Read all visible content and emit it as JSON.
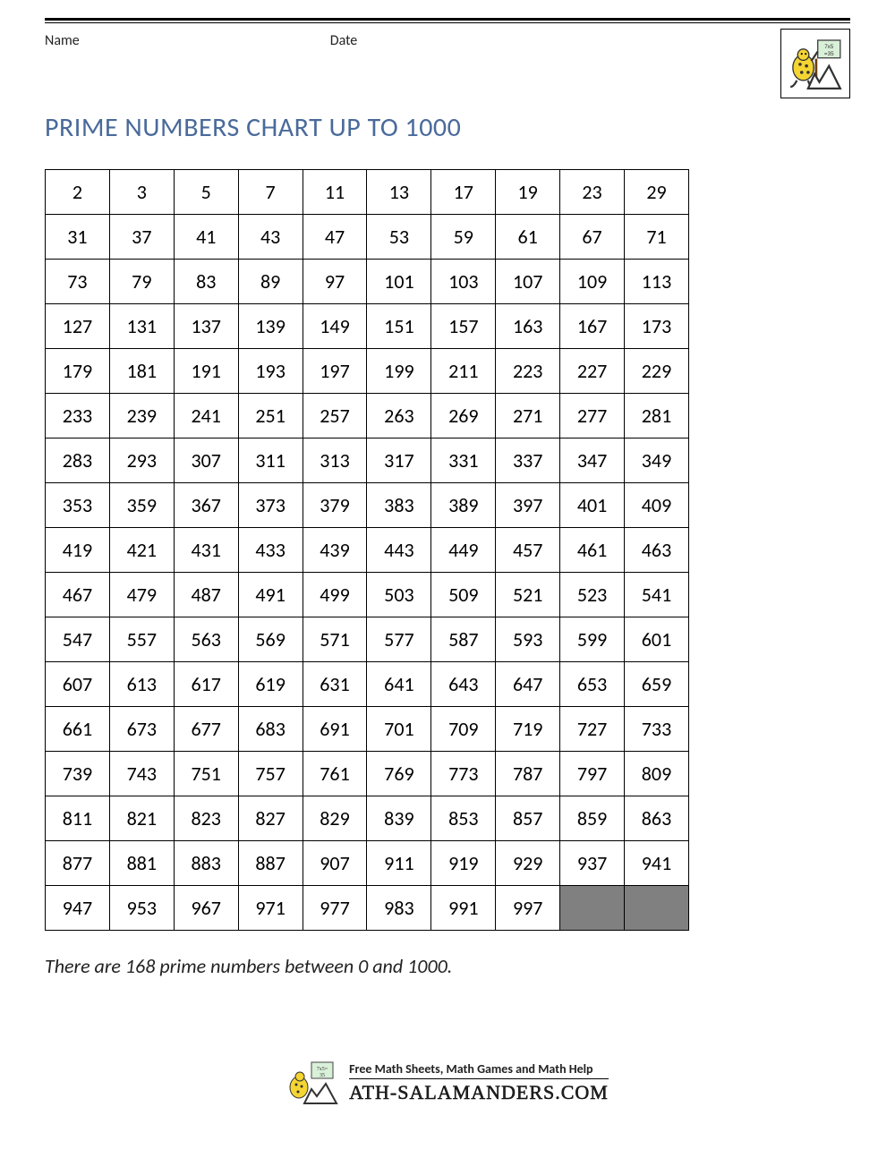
{
  "header": {
    "name_label": "Name",
    "date_label": "Date"
  },
  "title": "PRIME NUMBERS CHART UP TO 1000",
  "table": {
    "columns": 10,
    "cell_fontsize": 22,
    "border_color": "#000000",
    "empty_cell_color": "#808080",
    "values": [
      2,
      3,
      5,
      7,
      11,
      13,
      17,
      19,
      23,
      29,
      31,
      37,
      41,
      43,
      47,
      53,
      59,
      61,
      67,
      71,
      73,
      79,
      83,
      89,
      97,
      101,
      103,
      107,
      109,
      113,
      127,
      131,
      137,
      139,
      149,
      151,
      157,
      163,
      167,
      173,
      179,
      181,
      191,
      193,
      197,
      199,
      211,
      223,
      227,
      229,
      233,
      239,
      241,
      251,
      257,
      263,
      269,
      271,
      277,
      281,
      283,
      293,
      307,
      311,
      313,
      317,
      331,
      337,
      347,
      349,
      353,
      359,
      367,
      373,
      379,
      383,
      389,
      397,
      401,
      409,
      419,
      421,
      431,
      433,
      439,
      443,
      449,
      457,
      461,
      463,
      467,
      479,
      487,
      491,
      499,
      503,
      509,
      521,
      523,
      541,
      547,
      557,
      563,
      569,
      571,
      577,
      587,
      593,
      599,
      601,
      607,
      613,
      617,
      619,
      631,
      641,
      643,
      647,
      653,
      659,
      661,
      673,
      677,
      683,
      691,
      701,
      709,
      719,
      727,
      733,
      739,
      743,
      751,
      757,
      761,
      769,
      773,
      787,
      797,
      809,
      811,
      821,
      823,
      827,
      829,
      839,
      853,
      857,
      859,
      863,
      877,
      881,
      883,
      887,
      907,
      911,
      919,
      929,
      937,
      941,
      947,
      953,
      967,
      971,
      977,
      983,
      991,
      997,
      null,
      null
    ]
  },
  "caption": "There are 168 prime numbers between 0 and 1000.",
  "footer": {
    "tagline": "Free Math Sheets, Math Games and Math Help",
    "site": "ATH-SALAMANDERS.COM"
  },
  "colors": {
    "title_color": "#4a6a9a",
    "background": "#ffffff",
    "text": "#000000"
  }
}
